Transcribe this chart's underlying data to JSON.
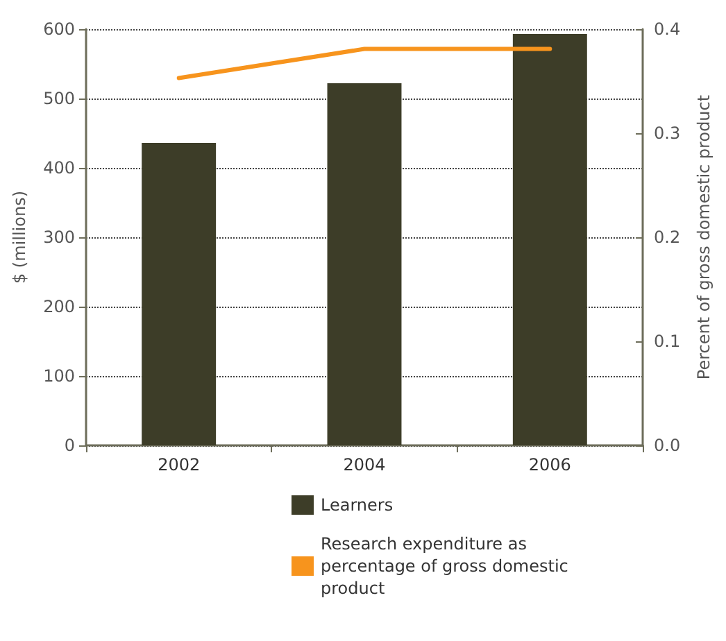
{
  "chart_data": {
    "type": "bar",
    "categories": [
      "2002",
      "2004",
      "2006"
    ],
    "ylabel": "$ (millions)",
    "y2label": "Percent of gross domestic product",
    "ylim": [
      0,
      600
    ],
    "yticks": [
      0,
      100,
      200,
      300,
      400,
      500,
      600
    ],
    "y2lim": [
      0,
      0.4
    ],
    "y2ticks": [
      {
        "value": 0,
        "label": "0.0"
      },
      0.1,
      0.2,
      0.3,
      0.4
    ],
    "grid": "y",
    "legend": "bottom",
    "series": [
      {
        "name": "Learners",
        "color": "#3d3d28",
        "values": [
          436,
          522,
          593
        ]
      },
      {
        "name": "Research expenditure as percentage of gross domestic product",
        "type": "line",
        "axis": "y2",
        "color": "#f7941d",
        "marker": "none",
        "values": [
          0.353,
          0.381,
          0.381
        ]
      }
    ]
  }
}
